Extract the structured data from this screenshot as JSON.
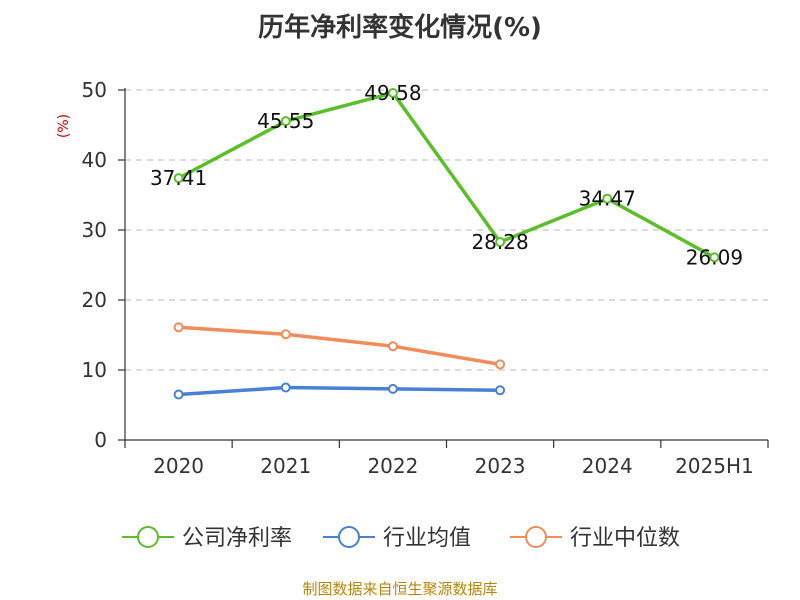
{
  "chart_data": {
    "type": "line",
    "title": "历年净利率变化情况(%)",
    "ylabel": "(%)",
    "xlabel": "",
    "categories": [
      "2020",
      "2021",
      "2022",
      "2023",
      "2024",
      "2025H1"
    ],
    "ylim": [
      0,
      50
    ],
    "yticks": [
      0,
      10,
      20,
      30,
      40,
      50
    ],
    "grid": true,
    "legend_position": "bottom",
    "series": [
      {
        "name": "公司净利率",
        "color": "#5cbf2a",
        "values": [
          37.41,
          45.55,
          49.58,
          28.28,
          34.47,
          26.09
        ],
        "labels": [
          "37.41",
          "45.55",
          "49.58",
          "28.28",
          "34.47",
          "26.09"
        ]
      },
      {
        "name": "行业均值",
        "color": "#4a7fd6",
        "values": [
          6.5,
          7.5,
          7.3,
          7.1,
          null,
          null
        ]
      },
      {
        "name": "行业中位数",
        "color": "#f28c5a",
        "values": [
          16.1,
          15.1,
          13.4,
          10.8,
          null,
          null
        ]
      }
    ]
  },
  "source_text": "制图数据来自恒生聚源数据库"
}
